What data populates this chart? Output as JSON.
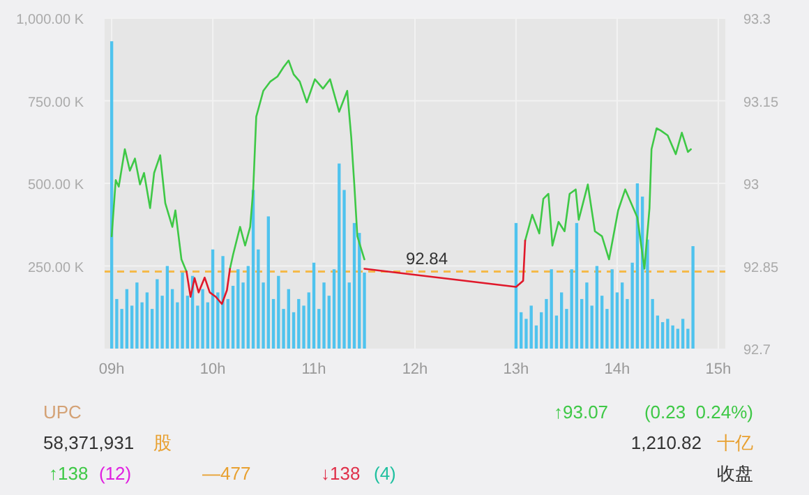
{
  "chart_data": {
    "type": "line",
    "grid": true,
    "xlim": [
      8.93,
      15.07
    ],
    "xticks": [
      {
        "value": 9,
        "label": "09h"
      },
      {
        "value": 10,
        "label": "10h"
      },
      {
        "value": 11,
        "label": "11h"
      },
      {
        "value": 12,
        "label": "12h"
      },
      {
        "value": 13,
        "label": "13h"
      },
      {
        "value": 14,
        "label": "14h"
      },
      {
        "value": 15,
        "label": "15h"
      }
    ],
    "ylim": [
      0,
      1000
    ],
    "yticks": [
      {
        "value": 250,
        "label": "250.00 K"
      },
      {
        "value": 500,
        "label": "500.00 K"
      },
      {
        "value": 750,
        "label": "750.00 K"
      },
      {
        "value": 1000,
        "label": "1,000.00 K"
      }
    ],
    "y2lim": [
      92.7,
      93.3
    ],
    "y2ticks": [
      92.7,
      92.85,
      93,
      93.15,
      93.3
    ],
    "series": [
      {
        "type": "bar",
        "color": "#4fc3ee",
        "axis": "y",
        "x": [
          9.0,
          9.05,
          9.1,
          9.15,
          9.2,
          9.25,
          9.3,
          9.35,
          9.4,
          9.45,
          9.5,
          9.55,
          9.6,
          9.65,
          9.7,
          9.75,
          9.8,
          9.85,
          9.9,
          9.95,
          10.0,
          10.05,
          10.1,
          10.15,
          10.2,
          10.25,
          10.3,
          10.35,
          10.4,
          10.45,
          10.5,
          10.55,
          10.6,
          10.65,
          10.7,
          10.75,
          10.8,
          10.85,
          10.9,
          10.95,
          11.0,
          11.05,
          11.1,
          11.15,
          11.2,
          11.25,
          11.3,
          11.35,
          11.4,
          11.45,
          11.5,
          13.0,
          13.05,
          13.1,
          13.15,
          13.2,
          13.25,
          13.3,
          13.35,
          13.4,
          13.45,
          13.5,
          13.55,
          13.6,
          13.65,
          13.7,
          13.75,
          13.8,
          13.85,
          13.9,
          13.95,
          14.0,
          14.05,
          14.1,
          14.15,
          14.2,
          14.25,
          14.3,
          14.35,
          14.4,
          14.45,
          14.5,
          14.55,
          14.6,
          14.65,
          14.7,
          14.75
        ],
        "values": [
          930,
          150,
          120,
          180,
          130,
          200,
          140,
          170,
          120,
          210,
          160,
          250,
          180,
          140,
          230,
          160,
          220,
          130,
          180,
          140,
          300,
          170,
          280,
          150,
          190,
          240,
          200,
          250,
          480,
          300,
          200,
          400,
          150,
          220,
          120,
          180,
          110,
          150,
          130,
          170,
          260,
          120,
          200,
          160,
          240,
          560,
          480,
          200,
          380,
          350,
          230,
          380,
          110,
          90,
          130,
          70,
          110,
          150,
          240,
          100,
          170,
          120,
          240,
          380,
          150,
          200,
          130,
          250,
          160,
          120,
          240,
          170,
          200,
          150,
          260,
          500,
          460,
          330,
          150,
          100,
          80,
          90,
          70,
          60,
          90,
          60,
          310
        ]
      },
      {
        "color": "#3ec846",
        "axis": "y2",
        "x": [
          9.0,
          9.04,
          9.07,
          9.13,
          9.18,
          9.23,
          9.28,
          9.32,
          9.38,
          9.42,
          9.48,
          9.53,
          9.6,
          9.63,
          9.69,
          9.74
        ],
        "values": [
          92.904,
          93.006,
          92.994,
          93.062,
          93.023,
          93.045,
          92.998,
          93.019,
          92.955,
          93.019,
          93.051,
          92.964,
          92.921,
          92.951,
          92.862,
          92.84
        ]
      },
      {
        "color": "#3ec846",
        "axis": "y2",
        "x": [
          10.17,
          10.2,
          10.27,
          10.32,
          10.37,
          10.4,
          10.43,
          10.5,
          10.57,
          10.64,
          10.7,
          10.75,
          10.8,
          10.86,
          10.93,
          11.01,
          11.09,
          11.16,
          11.25,
          11.33,
          11.37,
          11.4,
          11.43,
          11.5
        ],
        "values": [
          92.845,
          92.87,
          92.921,
          92.887,
          92.921,
          92.989,
          93.121,
          93.168,
          93.185,
          93.194,
          93.211,
          93.223,
          93.198,
          93.185,
          93.147,
          93.189,
          93.172,
          93.189,
          93.13,
          93.168,
          93.083,
          92.998,
          92.904,
          92.862
        ]
      },
      {
        "color": "#3ec846",
        "axis": "y2",
        "x": [
          13.09,
          13.16,
          13.23,
          13.27,
          13.32,
          13.36,
          13.42,
          13.48,
          13.53,
          13.59,
          13.62,
          13.71,
          13.78,
          13.85,
          13.92,
          14.01,
          14.08,
          14.2,
          14.27,
          14.32,
          14.34,
          14.39,
          14.43,
          14.5,
          14.58,
          14.64,
          14.7,
          14.73
        ],
        "values": [
          92.896,
          92.943,
          92.909,
          92.972,
          92.981,
          92.887,
          92.93,
          92.913,
          92.981,
          92.989,
          92.934,
          92.998,
          92.913,
          92.904,
          92.862,
          92.951,
          92.989,
          92.938,
          92.845,
          92.955,
          93.062,
          93.1,
          93.096,
          93.087,
          93.053,
          93.092,
          93.057,
          93.062
        ]
      },
      {
        "color": "#e0182a",
        "axis": "y2",
        "x": [
          9.74,
          9.78,
          9.82,
          9.86,
          9.92,
          9.97,
          10.03,
          10.09,
          10.14,
          10.17
        ],
        "values": [
          92.84,
          92.794,
          92.828,
          92.802,
          92.829,
          92.802,
          92.794,
          92.781,
          92.806,
          92.845
        ]
      },
      {
        "color": "#e0182a",
        "axis": "y2",
        "x": [
          11.5,
          13.0,
          13.07,
          13.09
        ],
        "values": [
          92.845,
          92.812,
          92.823,
          92.896
        ]
      }
    ],
    "ref_lines": [
      {
        "axis": "y2",
        "value": 92.84,
        "label": "92.84",
        "color": "#f5b949",
        "line_style": "dashed"
      }
    ],
    "annotations": [
      "UPC",
      "↑93.07",
      "(0.23  0.24%)",
      "58,371,931",
      "股",
      "1,210.82",
      "十亿",
      "↑138",
      "(12)",
      "—477",
      "↓138",
      "(4)",
      "收盘"
    ]
  }
}
